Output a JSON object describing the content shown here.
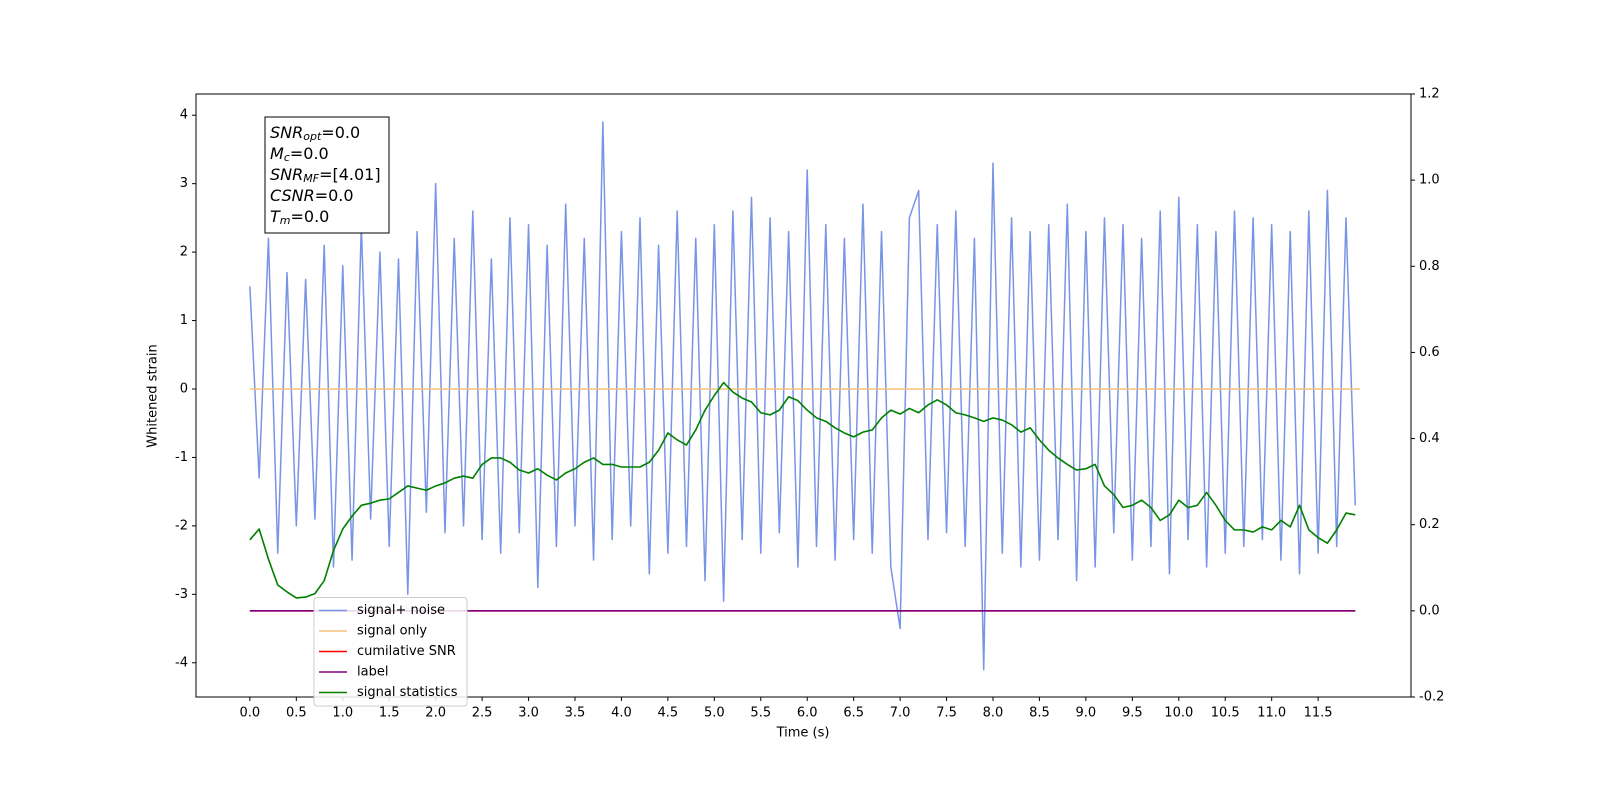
{
  "chart_data": {
    "type": "line",
    "xlabel": "Time (s)",
    "ylabel": "Whitened strain",
    "x": [
      0.0,
      0.1,
      0.2,
      0.3,
      0.4,
      0.5,
      0.6,
      0.7,
      0.8,
      0.9,
      1.0,
      1.1,
      1.2,
      1.3,
      1.4,
      1.5,
      1.6,
      1.7,
      1.8,
      1.9,
      2.0,
      2.1,
      2.2,
      2.3,
      2.4,
      2.5,
      2.6,
      2.7,
      2.8,
      2.9,
      3.0,
      3.1,
      3.2,
      3.3,
      3.4,
      3.5,
      3.6,
      3.7,
      3.8,
      3.9,
      4.0,
      4.1,
      4.2,
      4.3,
      4.4,
      4.5,
      4.6,
      4.7,
      4.8,
      4.9,
      5.0,
      5.1,
      5.2,
      5.3,
      5.4,
      5.5,
      5.6,
      5.7,
      5.8,
      5.9,
      6.0,
      6.1,
      6.2,
      6.3,
      6.4,
      6.5,
      6.6,
      6.7,
      6.8,
      6.9,
      7.0,
      7.1,
      7.2,
      7.3,
      7.4,
      7.5,
      7.6,
      7.7,
      7.8,
      7.9,
      8.0,
      8.1,
      8.2,
      8.3,
      8.4,
      8.5,
      8.6,
      8.7,
      8.8,
      8.9,
      9.0,
      9.1,
      9.2,
      9.3,
      9.4,
      9.5,
      9.6,
      9.7,
      9.8,
      9.9,
      10.0,
      10.1,
      10.2,
      10.3,
      10.4,
      10.5,
      10.6,
      10.7,
      10.8,
      10.9,
      11.0,
      11.1,
      11.2,
      11.3,
      11.4,
      11.5,
      11.6,
      11.7,
      11.8,
      11.9
    ],
    "series": [
      {
        "name": "signal+ noise",
        "color": "#7894e6",
        "values": [
          1.5,
          -1.3,
          2.2,
          -2.4,
          1.7,
          -2.0,
          1.6,
          -1.9,
          2.1,
          -2.6,
          1.8,
          -2.5,
          2.4,
          -1.9,
          2.0,
          -2.3,
          1.9,
          -3.0,
          2.3,
          -1.8,
          3.0,
          -2.1,
          2.2,
          -2.0,
          2.6,
          -2.2,
          1.9,
          -2.4,
          2.5,
          -2.1,
          2.4,
          -2.9,
          2.1,
          -2.3,
          2.7,
          -2.0,
          2.2,
          -2.5,
          3.9,
          -2.2,
          2.3,
          -2.0,
          2.5,
          -2.7,
          2.1,
          -2.4,
          2.6,
          -2.3,
          2.2,
          -2.8,
          2.4,
          -3.1,
          2.6,
          -2.2,
          2.8,
          -2.4,
          2.5,
          -2.1,
          2.3,
          -2.6,
          3.2,
          -2.3,
          2.4,
          -2.5,
          2.2,
          -2.2,
          2.7,
          -2.4,
          2.3,
          -2.6,
          -3.5,
          2.5,
          2.9,
          -2.2,
          2.4,
          -2.1,
          2.6,
          -2.3,
          2.2,
          -4.1,
          3.3,
          -2.4,
          2.5,
          -2.6,
          2.3,
          -2.5,
          2.4,
          -2.2,
          2.7,
          -2.8,
          2.3,
          -2.6,
          2.5,
          -2.1,
          2.4,
          -2.5,
          2.2,
          -2.3,
          2.6,
          -2.7,
          2.8,
          -2.2,
          2.4,
          -2.6,
          2.3,
          -2.4,
          2.6,
          -2.3,
          2.5,
          -2.2,
          2.4,
          -2.5,
          2.3,
          -2.7,
          2.6,
          -2.4,
          2.9,
          -2.3,
          2.5,
          -1.7
        ]
      },
      {
        "name": "signal only",
        "color": "#f5c07a",
        "x": [
          0.0,
          11.95
        ],
        "values": [
          0,
          0
        ]
      },
      {
        "name": "cumilative SNR",
        "color": "#ff0000",
        "axis": "y2",
        "x": [
          0.0,
          11.9
        ],
        "values": [
          0,
          0
        ]
      },
      {
        "name": "label",
        "color": "#800080",
        "axis": "y2",
        "x": [
          0.0,
          11.9
        ],
        "values": [
          0,
          0
        ]
      },
      {
        "name": "signal statistics",
        "color": "#008000",
        "axis": "y2",
        "values": [
          0.165,
          0.19,
          0.12,
          0.06,
          0.044,
          0.03,
          0.032,
          0.04,
          0.07,
          0.14,
          0.19,
          0.22,
          0.245,
          0.25,
          0.257,
          0.26,
          0.275,
          0.29,
          0.285,
          0.28,
          0.29,
          0.297,
          0.308,
          0.313,
          0.308,
          0.34,
          0.355,
          0.355,
          0.345,
          0.327,
          0.32,
          0.33,
          0.315,
          0.304,
          0.32,
          0.33,
          0.345,
          0.355,
          0.34,
          0.34,
          0.334,
          0.334,
          0.334,
          0.345,
          0.373,
          0.413,
          0.397,
          0.385,
          0.42,
          0.466,
          0.5,
          0.53,
          0.508,
          0.494,
          0.485,
          0.46,
          0.455,
          0.466,
          0.497,
          0.488,
          0.466,
          0.448,
          0.44,
          0.425,
          0.413,
          0.404,
          0.415,
          0.42,
          0.448,
          0.466,
          0.457,
          0.47,
          0.46,
          0.478,
          0.49,
          0.478,
          0.46,
          0.455,
          0.448,
          0.44,
          0.448,
          0.443,
          0.432,
          0.415,
          0.425,
          0.397,
          0.373,
          0.355,
          0.34,
          0.327,
          0.33,
          0.34,
          0.29,
          0.27,
          0.24,
          0.245,
          0.257,
          0.24,
          0.21,
          0.223,
          0.257,
          0.24,
          0.245,
          0.275,
          0.245,
          0.21,
          0.188,
          0.188,
          0.183,
          0.195,
          0.188,
          0.21,
          0.195,
          0.245,
          0.188,
          0.17,
          0.157,
          0.188,
          0.227,
          0.223
        ]
      }
    ],
    "xlim": [
      -0.58,
      12.5
    ],
    "xticks": [
      {
        "value": 0,
        "label": "0.0"
      },
      0.5,
      {
        "value": 1,
        "label": "1.0"
      },
      1.5,
      {
        "value": 2,
        "label": "2.0"
      },
      2.5,
      {
        "value": 3,
        "label": "3.0"
      },
      3.5,
      {
        "value": 4,
        "label": "4.0"
      },
      4.5,
      {
        "value": 5,
        "label": "5.0"
      },
      5.5,
      {
        "value": 6,
        "label": "6.0"
      },
      6.5,
      {
        "value": 7,
        "label": "7.0"
      },
      7.5,
      {
        "value": 8,
        "label": "8.0"
      },
      8.5,
      {
        "value": 9,
        "label": "9.0"
      },
      9.5,
      {
        "value": 10,
        "label": "10.0"
      },
      10.5,
      {
        "value": 11,
        "label": "11.0"
      },
      11.5
    ],
    "ylim": [
      -4.5,
      4.31
    ],
    "yticks": [
      -4,
      -3,
      -2,
      -1,
      0,
      1,
      2,
      3,
      4
    ],
    "y2lim": [
      -0.2,
      1.2
    ],
    "y2ticks": [
      -0.2,
      {
        "value": 0,
        "label": "0.0"
      },
      0.2,
      0.4,
      0.6,
      0.8,
      {
        "value": 1,
        "label": "1.0"
      },
      1.2
    ],
    "legend": "lower left",
    "textbox": [
      {
        "base": "SNR",
        "sub": "opt",
        "rest": "=0.0"
      },
      {
        "base": "M",
        "sub": "c",
        "rest": "=0.0"
      },
      {
        "base": "SNR",
        "sub": "MF",
        "rest": "=[4.01]"
      },
      {
        "base": "CSNR",
        "rest": "=0.0"
      },
      {
        "base": "T",
        "sub": "m",
        "rest": "=0.0"
      }
    ]
  }
}
